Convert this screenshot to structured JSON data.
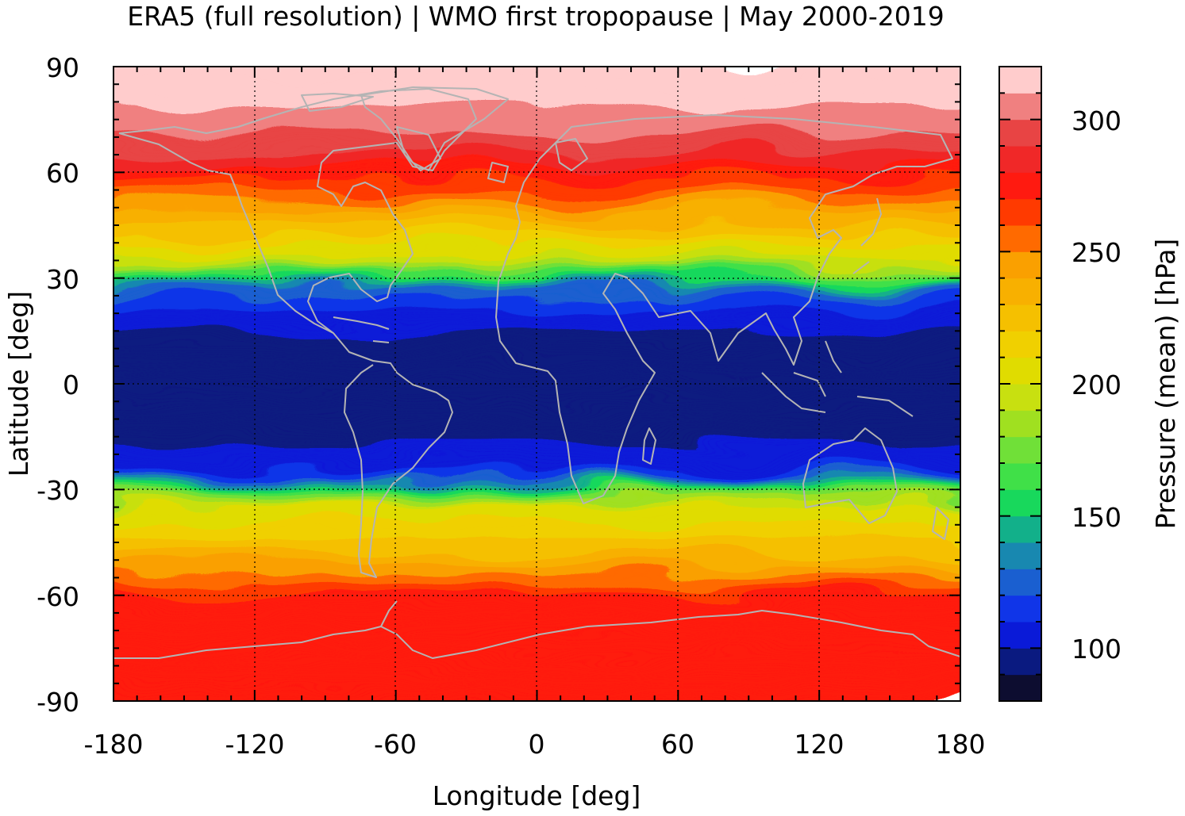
{
  "title": "ERA5 (full resolution) | WMO first tropopause | May 2000-2019",
  "chart_data": {
    "type": "heatmap",
    "title": "ERA5 (full resolution) | WMO first tropopause | May 2000-2019",
    "xlabel": "Longitude [deg]",
    "ylabel": "Latitude [deg]",
    "xlim": [
      -180,
      180
    ],
    "ylim": [
      -90,
      90
    ],
    "xticks": [
      "-180",
      "-120",
      "-60",
      "0",
      "60",
      "120",
      "180"
    ],
    "yticks": [
      "90",
      "60",
      "30",
      "0",
      "-30",
      "-60",
      "-90"
    ],
    "grid": true,
    "colorbar": {
      "label": "Pressure (mean) [hPa]",
      "range": [
        80,
        320
      ],
      "ticks": [
        "100",
        "150",
        "200",
        "250",
        "300"
      ],
      "levels": [
        {
          "from": 80,
          "to": 90,
          "color": "#0d0d30"
        },
        {
          "from": 90,
          "to": 100,
          "color": "#0a1a80"
        },
        {
          "from": 100,
          "to": 110,
          "color": "#0a1ad8"
        },
        {
          "from": 110,
          "to": 120,
          "color": "#1035e8"
        },
        {
          "from": 120,
          "to": 130,
          "color": "#1a5fd0"
        },
        {
          "from": 130,
          "to": 140,
          "color": "#1888b0"
        },
        {
          "from": 140,
          "to": 150,
          "color": "#12b08a"
        },
        {
          "from": 150,
          "to": 160,
          "color": "#18d85c"
        },
        {
          "from": 160,
          "to": 170,
          "color": "#40e048"
        },
        {
          "from": 170,
          "to": 180,
          "color": "#70e038"
        },
        {
          "from": 180,
          "to": 190,
          "color": "#a0e020"
        },
        {
          "from": 190,
          "to": 200,
          "color": "#c8e010"
        },
        {
          "from": 200,
          "to": 210,
          "color": "#e0dc00"
        },
        {
          "from": 210,
          "to": 220,
          "color": "#f0d000"
        },
        {
          "from": 220,
          "to": 230,
          "color": "#f5c000"
        },
        {
          "from": 230,
          "to": 240,
          "color": "#f8b000"
        },
        {
          "from": 240,
          "to": 250,
          "color": "#faa000"
        },
        {
          "from": 250,
          "to": 260,
          "color": "#ff6a00"
        },
        {
          "from": 260,
          "to": 270,
          "color": "#ff3a00"
        },
        {
          "from": 270,
          "to": 280,
          "color": "#ff1a10"
        },
        {
          "from": 280,
          "to": 290,
          "color": "#f02828"
        },
        {
          "from": 290,
          "to": 300,
          "color": "#e84444"
        },
        {
          "from": 300,
          "to": 310,
          "color": "#f08080"
        },
        {
          "from": 310,
          "to": 320,
          "color": "#ffcccc"
        }
      ]
    },
    "zonal_mean_profile": {
      "lat": [
        -90,
        -80,
        -70,
        -60,
        -55,
        -50,
        -45,
        -40,
        -35,
        -30,
        -27,
        -24,
        -20,
        -15,
        -10,
        -5,
        0,
        5,
        10,
        15,
        20,
        25,
        28,
        31,
        35,
        40,
        45,
        50,
        55,
        60,
        65,
        70,
        75,
        80,
        85,
        90
      ],
      "pressure_hPa": [
        270,
        275,
        275,
        270,
        252,
        235,
        222,
        212,
        200,
        165,
        130,
        108,
        102,
        97,
        94,
        93,
        93,
        93,
        95,
        100,
        106,
        118,
        135,
        165,
        195,
        212,
        228,
        245,
        262,
        275,
        288,
        298,
        305,
        312,
        316,
        318
      ]
    },
    "coastlines": "shown (light gray)"
  }
}
